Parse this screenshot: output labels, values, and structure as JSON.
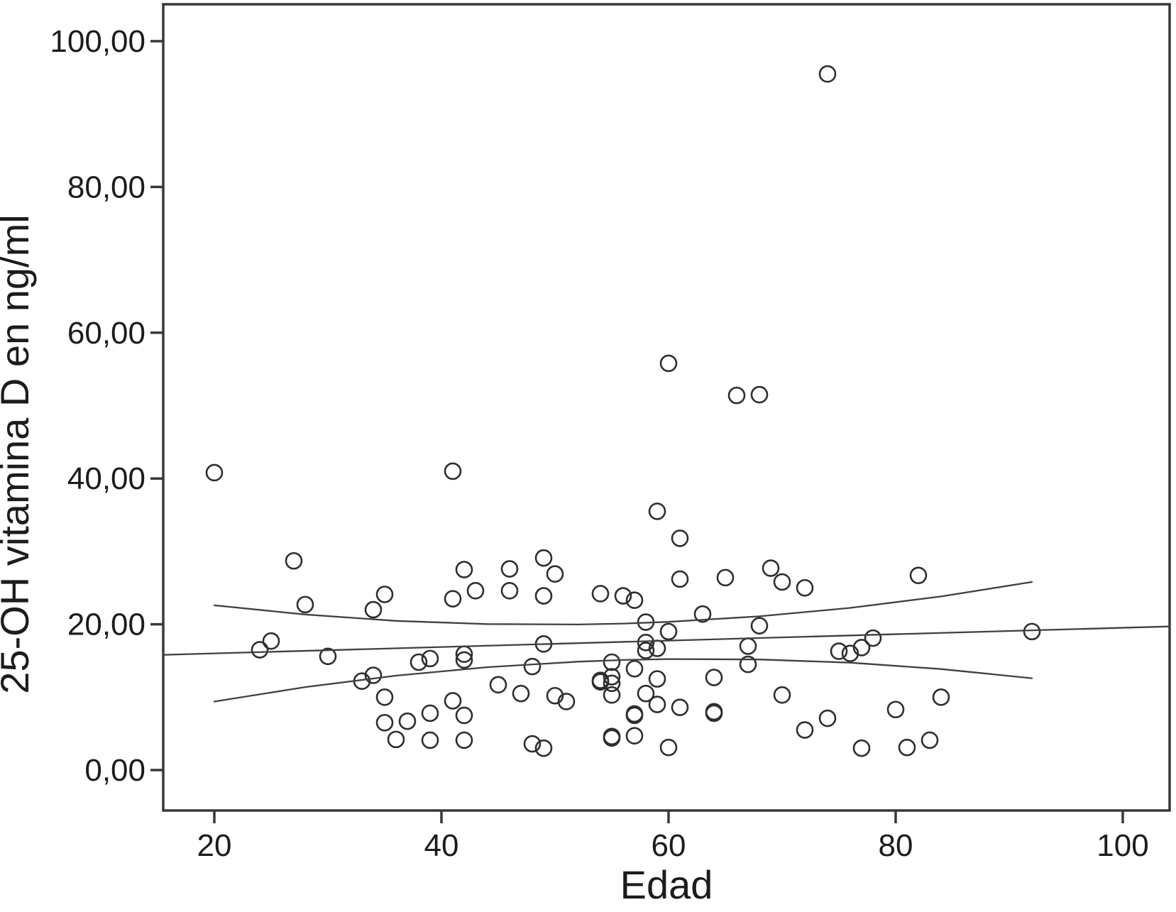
{
  "chart_data": {
    "type": "scatter",
    "title": "",
    "xlabel": "Edad",
    "ylabel": "25-OH vitamina D en ng/ml",
    "xlim": [
      15.5,
      104.1
    ],
    "ylim": [
      -5.5,
      105.0
    ],
    "grid": false,
    "legend": "none",
    "x_ticks": [
      {
        "value": 20,
        "label": "20"
      },
      {
        "value": 40,
        "label": "40"
      },
      {
        "value": 60,
        "label": "60"
      },
      {
        "value": 80,
        "label": "80"
      },
      {
        "value": 100,
        "label": "100"
      }
    ],
    "y_ticks": [
      {
        "value": 0,
        "label": "0,00"
      },
      {
        "value": 20,
        "label": "20,00"
      },
      {
        "value": 40,
        "label": "40,00"
      },
      {
        "value": 60,
        "label": "60,00"
      },
      {
        "value": 80,
        "label": "80,00"
      },
      {
        "value": 100,
        "label": "100,00"
      }
    ],
    "points": [
      [
        20,
        40.8
      ],
      [
        24,
        16.5
      ],
      [
        25,
        17.7
      ],
      [
        27,
        28.7
      ],
      [
        28,
        22.7
      ],
      [
        30,
        15.6
      ],
      [
        33,
        12.2
      ],
      [
        34,
        13.0
      ],
      [
        34,
        22.0
      ],
      [
        35,
        24.1
      ],
      [
        35,
        10.0
      ],
      [
        35,
        6.5
      ],
      [
        36,
        4.2
      ],
      [
        37,
        6.7
      ],
      [
        38,
        14.8
      ],
      [
        39,
        15.3
      ],
      [
        39,
        7.8
      ],
      [
        39,
        4.1
      ],
      [
        41,
        41.0
      ],
      [
        41,
        23.5
      ],
      [
        41,
        9.5
      ],
      [
        42,
        27.5
      ],
      [
        42,
        15.9
      ],
      [
        42,
        15.1
      ],
      [
        42,
        7.5
      ],
      [
        42,
        4.1
      ],
      [
        43,
        24.6
      ],
      [
        45,
        11.7
      ],
      [
        46,
        27.6
      ],
      [
        46,
        24.6
      ],
      [
        47,
        10.5
      ],
      [
        48,
        14.2
      ],
      [
        48,
        3.6
      ],
      [
        49,
        29.1
      ],
      [
        49,
        23.9
      ],
      [
        49,
        17.3
      ],
      [
        49,
        3.0
      ],
      [
        50,
        26.9
      ],
      [
        50,
        10.2
      ],
      [
        51,
        9.4
      ],
      [
        54,
        24.2
      ],
      [
        54,
        12.3
      ],
      [
        54,
        12.1
      ],
      [
        55,
        14.8
      ],
      [
        55,
        12.8
      ],
      [
        55,
        11.9
      ],
      [
        55,
        10.3
      ],
      [
        55,
        4.6
      ],
      [
        55,
        4.4
      ],
      [
        56,
        23.9
      ],
      [
        57,
        23.3
      ],
      [
        57,
        13.9
      ],
      [
        57,
        7.7
      ],
      [
        57,
        7.5
      ],
      [
        57,
        4.7
      ],
      [
        58,
        20.3
      ],
      [
        58,
        17.5
      ],
      [
        58,
        16.4
      ],
      [
        58,
        10.5
      ],
      [
        59,
        16.7
      ],
      [
        59,
        12.5
      ],
      [
        59,
        9.0
      ],
      [
        59,
        35.5
      ],
      [
        60,
        55.8
      ],
      [
        60,
        19.0
      ],
      [
        60,
        3.1
      ],
      [
        61,
        31.8
      ],
      [
        61,
        26.2
      ],
      [
        61,
        8.6
      ],
      [
        63,
        21.4
      ],
      [
        64,
        12.7
      ],
      [
        64,
        8.0
      ],
      [
        64,
        7.8
      ],
      [
        65,
        26.4
      ],
      [
        66,
        51.4
      ],
      [
        67,
        17.0
      ],
      [
        67,
        14.5
      ],
      [
        68,
        51.5
      ],
      [
        68,
        19.8
      ],
      [
        69,
        27.7
      ],
      [
        70,
        25.8
      ],
      [
        70,
        10.3
      ],
      [
        72,
        25.0
      ],
      [
        72,
        5.5
      ],
      [
        74,
        95.5
      ],
      [
        74,
        7.1
      ],
      [
        75,
        16.3
      ],
      [
        76,
        16.0
      ],
      [
        77,
        16.8
      ],
      [
        77,
        3.0
      ],
      [
        78,
        18.1
      ],
      [
        80,
        8.3
      ],
      [
        81,
        3.1
      ],
      [
        82,
        26.7
      ],
      [
        83,
        4.1
      ],
      [
        84,
        10.0
      ],
      [
        92,
        19.0
      ]
    ],
    "fit_lines": {
      "middle": [
        [
          15.5,
          15.8
        ],
        [
          104.1,
          19.7
        ]
      ],
      "upper_ci": [
        [
          20,
          22.6
        ],
        [
          28,
          21.34
        ],
        [
          36,
          20.47
        ],
        [
          44,
          20.03
        ],
        [
          52,
          19.97
        ],
        [
          56,
          20.1
        ],
        [
          60,
          20.33
        ],
        [
          68,
          21.09
        ],
        [
          76,
          22.25
        ],
        [
          84,
          23.82
        ],
        [
          92,
          25.8
        ]
      ],
      "lower_ci": [
        [
          20,
          9.4
        ],
        [
          28,
          11.38
        ],
        [
          36,
          12.95
        ],
        [
          44,
          14.11
        ],
        [
          52,
          14.87
        ],
        [
          56,
          15.1
        ],
        [
          60,
          15.23
        ],
        [
          68,
          15.17
        ],
        [
          76,
          14.73
        ],
        [
          84,
          13.86
        ],
        [
          92,
          12.6
        ]
      ]
    },
    "marker": {
      "shape": "open-circle",
      "radius_px": 11,
      "color": "#2e2e2e"
    },
    "colors": {
      "fit_line": "#404040",
      "frame": "#383838",
      "text": "#1c1c1c",
      "background": "#ffffff"
    }
  }
}
